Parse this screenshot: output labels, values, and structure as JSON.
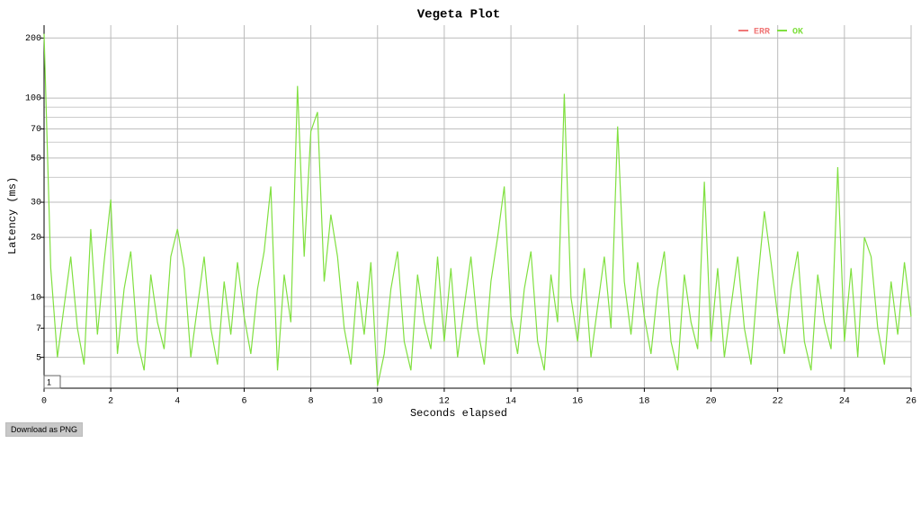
{
  "chart_data": {
    "type": "line",
    "title": "Vegeta Plot",
    "x_label": "Seconds elapsed",
    "y_label": "Latency (ms)",
    "x": [
      0,
      0.2,
      0.4,
      0.6,
      0.8,
      1,
      1.2,
      1.4,
      1.6,
      1.8,
      2,
      2.2,
      2.4,
      2.6,
      2.8,
      3,
      3.2,
      3.4,
      3.6,
      3.8,
      4,
      4.2,
      4.4,
      4.6,
      4.8,
      5,
      5.2,
      5.4,
      5.6,
      5.8,
      6,
      6.2,
      6.4,
      6.6,
      6.8,
      7,
      7.2,
      7.4,
      7.6,
      7.8,
      8,
      8.2,
      8.4,
      8.6,
      8.8,
      9,
      9.2,
      9.4,
      9.6,
      9.8,
      10,
      10.2,
      10.4,
      10.6,
      10.8,
      11,
      11.2,
      11.4,
      11.6,
      11.8,
      12,
      12.2,
      12.4,
      12.6,
      12.8,
      13,
      13.2,
      13.4,
      13.6,
      13.8,
      14,
      14.2,
      14.4,
      14.6,
      14.8,
      15,
      15.2,
      15.4,
      15.6,
      15.8,
      16,
      16.2,
      16.4,
      16.6,
      16.8,
      17,
      17.2,
      17.4,
      17.6,
      17.8,
      18,
      18.2,
      18.4,
      18.6,
      18.8,
      19,
      19.2,
      19.4,
      19.6,
      19.8,
      20,
      20.2,
      20.4,
      20.6,
      20.8,
      21,
      21.2,
      21.4,
      21.6,
      21.8,
      22,
      22.2,
      22.4,
      22.6,
      22.8,
      23,
      23.2,
      23.4,
      23.6,
      23.8,
      24,
      24.2,
      24.4,
      24.6,
      24.8,
      25,
      25.2,
      25.4,
      25.6,
      25.8,
      26
    ],
    "series": [
      {
        "name": "ERR",
        "color": "#f07878",
        "values": [
          null,
          null,
          null,
          null,
          null,
          null,
          null,
          null,
          null,
          null,
          null,
          null,
          null,
          null,
          null,
          null,
          null,
          null,
          null,
          null,
          null,
          null,
          null,
          null,
          null,
          null,
          null,
          null,
          null,
          null,
          null,
          null,
          null,
          null,
          null,
          null,
          null,
          null,
          null,
          null,
          null,
          null,
          null,
          null,
          null,
          null,
          null,
          null,
          null,
          null,
          null,
          null,
          null,
          null,
          null,
          null,
          null,
          null,
          null,
          null,
          null,
          null,
          null,
          null,
          null,
          null,
          null,
          null,
          null,
          null,
          null,
          null,
          null,
          null,
          null,
          null,
          null,
          null,
          null,
          null,
          null,
          null,
          null,
          null,
          null,
          null,
          null,
          null,
          null,
          null,
          null,
          null,
          null,
          null,
          null,
          null,
          null,
          null,
          null,
          null,
          null,
          null,
          null,
          null,
          null,
          null,
          null,
          null,
          null,
          null,
          null,
          null,
          null,
          null,
          null,
          null,
          null,
          null,
          null,
          null,
          null,
          null,
          null,
          null,
          null,
          null,
          null,
          null,
          null,
          null,
          null
        ]
      },
      {
        "name": "OK",
        "color": "#80e040",
        "values": [
          210,
          14,
          5,
          9,
          16,
          7,
          4.6,
          22,
          6.5,
          15,
          31,
          5.2,
          11,
          17,
          6,
          4.3,
          13,
          7.5,
          5.5,
          16,
          22,
          14,
          5,
          9,
          16,
          7,
          4.6,
          12,
          6.5,
          15,
          8,
          5.2,
          11,
          17,
          36,
          4.3,
          13,
          7.5,
          115,
          16,
          68,
          85,
          12,
          26,
          16,
          7,
          4.6,
          12,
          6.5,
          15,
          3.6,
          5.2,
          11,
          17,
          6,
          4.3,
          13,
          7.5,
          5.5,
          16,
          6,
          14,
          5,
          9,
          16,
          7,
          4.6,
          12,
          20,
          36,
          8,
          5.2,
          11,
          17,
          6,
          4.3,
          13,
          7.5,
          105,
          10,
          6,
          14,
          5,
          9,
          16,
          7,
          72,
          12,
          6.5,
          15,
          8,
          5.2,
          11,
          17,
          6,
          4.3,
          13,
          7.5,
          5.5,
          38,
          6,
          14,
          5,
          9,
          16,
          7,
          4.6,
          12,
          27,
          15,
          8,
          5.2,
          11,
          17,
          6,
          4.3,
          13,
          7.5,
          5.5,
          45,
          6,
          14,
          5,
          20,
          16,
          7,
          4.6,
          12,
          6.5,
          15,
          8
        ]
      }
    ],
    "xlim": [
      0,
      26
    ],
    "xticks": [
      0,
      2,
      4,
      6,
      8,
      10,
      12,
      14,
      16,
      18,
      20,
      22,
      24,
      26
    ],
    "ylim": [
      3.5,
      232
    ],
    "yticks": [
      5,
      7,
      10,
      20,
      30,
      50,
      70,
      100,
      200
    ],
    "yminor": [
      4,
      6,
      8,
      9,
      40,
      60,
      80,
      90
    ],
    "log_y": true,
    "grid": true,
    "legend": "top-right",
    "roll_period": 1
  },
  "download_button": "Download as PNG"
}
